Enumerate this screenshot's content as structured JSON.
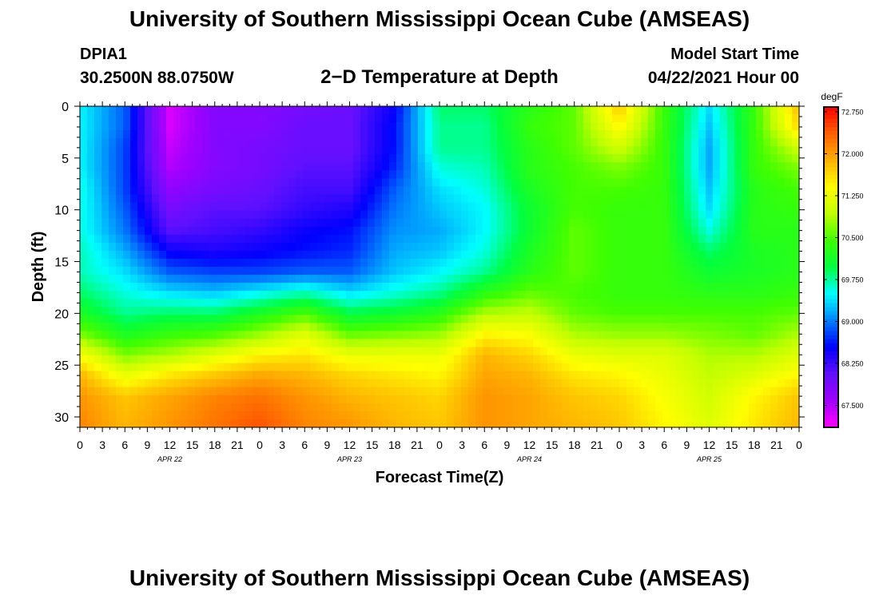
{
  "header": {
    "title": "University of Southern Mississippi Ocean Cube (AMSEAS)",
    "station": "DPIA1",
    "coords": "30.2500N  88.0750W",
    "subtitle": "2−D Temperature at Depth",
    "start_label": "Model Start Time",
    "start_value": "04/22/2021 Hour 00"
  },
  "footer": {
    "title": "University of Southern Mississippi Ocean Cube (AMSEAS)"
  },
  "chart_data": {
    "type": "heatmap",
    "xlabel": "Forecast Time(Z)",
    "ylabel": "Depth (ft)",
    "x_unit": "forecast hours from model start",
    "xlim": [
      0,
      96
    ],
    "ylim": [
      31,
      0
    ],
    "x_ticks": [
      {
        "hour": 0,
        "label": "0"
      },
      {
        "hour": 3,
        "label": "3"
      },
      {
        "hour": 6,
        "label": "6"
      },
      {
        "hour": 9,
        "label": "9"
      },
      {
        "hour": 12,
        "label": "12"
      },
      {
        "hour": 15,
        "label": "15"
      },
      {
        "hour": 18,
        "label": "18"
      },
      {
        "hour": 21,
        "label": "21"
      },
      {
        "hour": 24,
        "label": "0"
      },
      {
        "hour": 27,
        "label": "3"
      },
      {
        "hour": 30,
        "label": "6"
      },
      {
        "hour": 33,
        "label": "9"
      },
      {
        "hour": 36,
        "label": "12"
      },
      {
        "hour": 39,
        "label": "15"
      },
      {
        "hour": 42,
        "label": "18"
      },
      {
        "hour": 45,
        "label": "21"
      },
      {
        "hour": 48,
        "label": "0"
      },
      {
        "hour": 51,
        "label": "3"
      },
      {
        "hour": 54,
        "label": "6"
      },
      {
        "hour": 57,
        "label": "9"
      },
      {
        "hour": 60,
        "label": "12"
      },
      {
        "hour": 63,
        "label": "15"
      },
      {
        "hour": 66,
        "label": "18"
      },
      {
        "hour": 69,
        "label": "21"
      },
      {
        "hour": 72,
        "label": "0"
      },
      {
        "hour": 75,
        "label": "3"
      },
      {
        "hour": 78,
        "label": "6"
      },
      {
        "hour": 81,
        "label": "9"
      },
      {
        "hour": 84,
        "label": "12"
      },
      {
        "hour": 87,
        "label": "15"
      },
      {
        "hour": 90,
        "label": "18"
      },
      {
        "hour": 93,
        "label": "21"
      },
      {
        "hour": 96,
        "label": "0"
      }
    ],
    "date_labels": [
      {
        "hour": 12,
        "label": "APR 22"
      },
      {
        "hour": 36,
        "label": "APR 23"
      },
      {
        "hour": 60,
        "label": "APR 24"
      },
      {
        "hour": 84,
        "label": "APR 25"
      }
    ],
    "y_ticks": [
      0,
      5,
      10,
      15,
      20,
      25,
      30
    ],
    "colorbar": {
      "unit": "degF",
      "min": 67.1,
      "max": 72.9,
      "labels": [
        "72.750",
        "72.000",
        "71.250",
        "70.500",
        "69.750",
        "69.000",
        "68.250",
        "67.500"
      ],
      "colors": [
        "#ff00ff",
        "#a000ff",
        "#6010ff",
        "#0000ff",
        "#0080ff",
        "#00ffff",
        "#00ff40",
        "#40ff00",
        "#c0ff00",
        "#ffff00",
        "#ffb000",
        "#ff6000",
        "#ff0000"
      ]
    },
    "grid": false,
    "description_rows": "temperature values (degF) on a 17-hour x 16-depth grid",
    "times": [
      0,
      6,
      12,
      18,
      24,
      30,
      36,
      42,
      48,
      54,
      60,
      66,
      72,
      78,
      84,
      90,
      96
    ],
    "depths": [
      0,
      2,
      4,
      6,
      8,
      10,
      12,
      14,
      16,
      18,
      20,
      22,
      24,
      26,
      28,
      31
    ],
    "temperatures": [
      [
        69.5,
        68.9,
        67.3,
        67.8,
        67.8,
        67.9,
        68.0,
        68.5,
        69.9,
        69.9,
        70.3,
        70.6,
        71.8,
        70.4,
        69.4,
        70.4,
        71.9
      ],
      [
        69.5,
        68.9,
        67.3,
        67.8,
        67.8,
        68.0,
        68.0,
        68.6,
        69.8,
        69.8,
        70.4,
        70.6,
        71.5,
        70.4,
        69.3,
        70.4,
        71.7
      ],
      [
        69.5,
        68.8,
        67.4,
        67.8,
        67.9,
        68.0,
        68.0,
        68.6,
        69.8,
        69.8,
        70.3,
        70.6,
        71.1,
        70.4,
        69.2,
        70.4,
        71.1
      ],
      [
        69.5,
        68.8,
        67.5,
        67.8,
        67.9,
        68.1,
        68.1,
        68.7,
        69.6,
        69.7,
        70.3,
        70.5,
        70.7,
        70.4,
        69.2,
        70.4,
        70.7
      ],
      [
        69.6,
        68.8,
        67.7,
        67.9,
        68.0,
        68.2,
        68.2,
        68.9,
        69.4,
        69.6,
        70.2,
        70.5,
        70.5,
        70.4,
        69.3,
        70.3,
        70.5
      ],
      [
        69.6,
        68.9,
        67.9,
        68.1,
        68.1,
        68.3,
        68.4,
        69.0,
        69.3,
        69.5,
        70.1,
        70.5,
        70.4,
        70.4,
        69.4,
        70.3,
        70.4
      ],
      [
        69.6,
        69.0,
        68.1,
        68.2,
        68.3,
        68.5,
        68.6,
        69.1,
        69.2,
        69.5,
        70.1,
        70.6,
        70.4,
        70.4,
        69.6,
        70.3,
        70.3
      ],
      [
        69.7,
        69.2,
        68.5,
        68.4,
        68.5,
        68.6,
        68.7,
        69.2,
        69.3,
        69.6,
        70.2,
        70.6,
        70.4,
        70.4,
        69.9,
        70.2,
        70.3
      ],
      [
        69.7,
        69.4,
        68.9,
        68.8,
        68.8,
        68.9,
        68.9,
        69.3,
        69.5,
        69.8,
        70.3,
        70.6,
        70.4,
        70.4,
        70.1,
        70.2,
        70.3
      ],
      [
        69.9,
        69.6,
        69.4,
        69.3,
        69.5,
        69.7,
        69.4,
        69.6,
        69.8,
        70.3,
        70.6,
        70.5,
        70.4,
        70.4,
        70.3,
        70.3,
        70.4
      ],
      [
        70.2,
        69.8,
        69.9,
        69.9,
        70.2,
        70.5,
        70.0,
        70.1,
        70.3,
        70.9,
        71.0,
        70.6,
        70.5,
        70.5,
        70.5,
        70.5,
        70.6
      ],
      [
        70.7,
        70.2,
        70.4,
        70.5,
        70.8,
        71.2,
        70.6,
        70.7,
        70.8,
        71.5,
        71.4,
        70.9,
        70.8,
        70.8,
        70.7,
        70.6,
        70.9
      ],
      [
        71.4,
        70.7,
        70.9,
        71.2,
        71.5,
        71.6,
        71.3,
        71.3,
        71.3,
        71.9,
        71.7,
        71.3,
        71.2,
        71.2,
        70.9,
        70.9,
        71.2
      ],
      [
        71.9,
        71.3,
        71.6,
        71.8,
        72.0,
        71.9,
        71.7,
        71.6,
        71.5,
        72.0,
        71.9,
        71.6,
        71.5,
        71.3,
        71.0,
        71.2,
        71.5
      ],
      [
        72.1,
        71.8,
        72.0,
        72.2,
        72.3,
        72.1,
        71.9,
        71.8,
        71.7,
        72.1,
        72.0,
        71.8,
        71.7,
        71.4,
        71.1,
        71.5,
        71.8
      ],
      [
        72.2,
        71.9,
        72.1,
        72.3,
        72.5,
        72.2,
        72.1,
        71.9,
        71.8,
        72.1,
        72.0,
        71.9,
        71.8,
        71.5,
        71.2,
        71.6,
        71.9
      ]
    ]
  }
}
